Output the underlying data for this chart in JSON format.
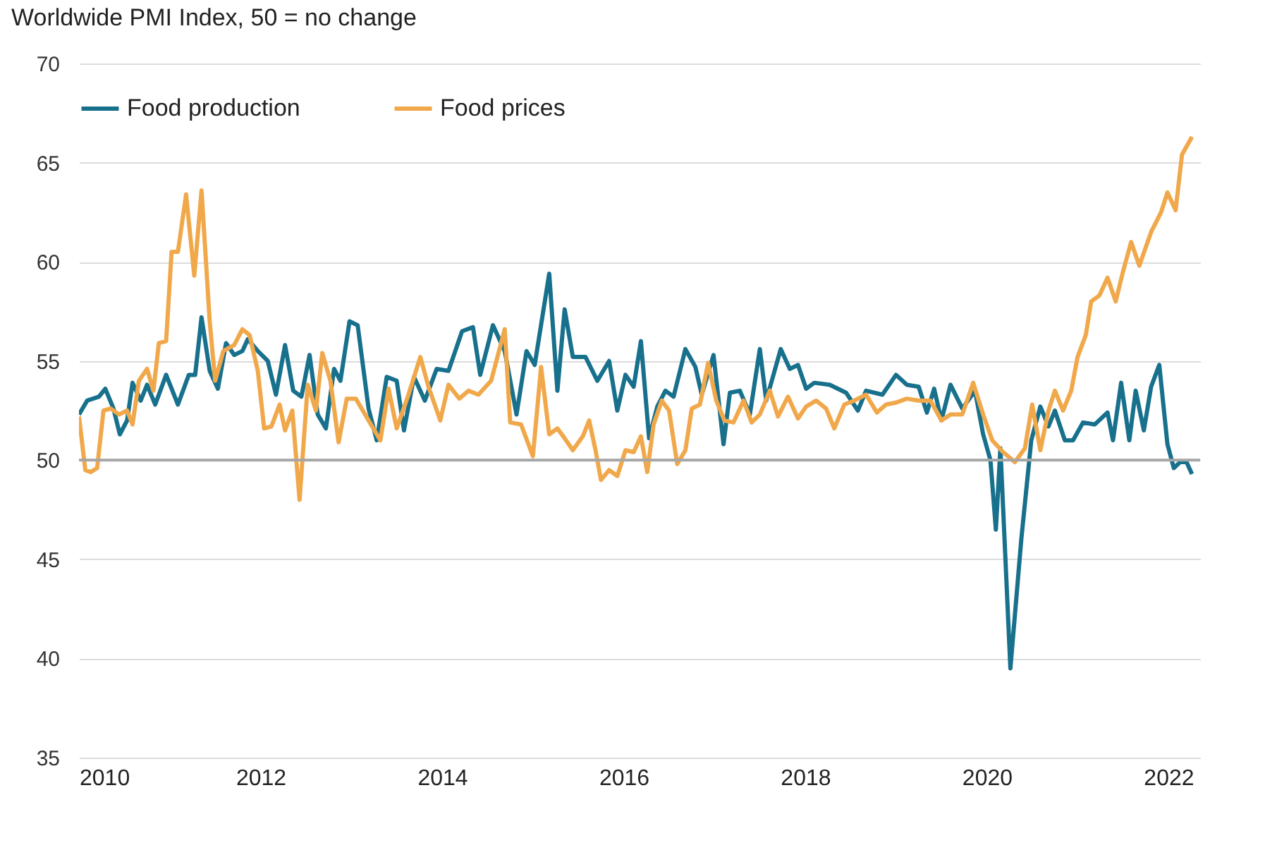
{
  "chart_data": {
    "type": "line",
    "title": "Worldwide PMI Index, 50 =  no change",
    "xlim": [
      2010,
      2022.35
    ],
    "xticks": [
      2010,
      2012,
      2014,
      2016,
      2018,
      2020,
      2022
    ],
    "ylim": [
      35,
      70
    ],
    "yticks": [
      35,
      40,
      45,
      50,
      55,
      60,
      65,
      70
    ],
    "grid": "y",
    "legend": "top",
    "ref_lines": [
      {
        "axis": "y",
        "value": 50,
        "color": "#a6a6a6"
      }
    ],
    "series": [
      {
        "name": "Food production",
        "color": "#17708c",
        "x": [
          2010.0,
          2010.09,
          2010.22,
          2010.29,
          2010.38,
          2010.45,
          2010.53,
          2010.59,
          2010.68,
          2010.75,
          2010.84,
          2010.96,
          2011.09,
          2011.21,
          2011.28,
          2011.35,
          2011.44,
          2011.53,
          2011.62,
          2011.71,
          2011.8,
          2011.86,
          2011.97,
          2012.08,
          2012.17,
          2012.27,
          2012.36,
          2012.45,
          2012.54,
          2012.63,
          2012.72,
          2012.81,
          2012.88,
          2012.98,
          2013.07,
          2013.19,
          2013.28,
          2013.39,
          2013.5,
          2013.58,
          2013.69,
          2013.81,
          2013.94,
          2014.07,
          2014.22,
          2014.34,
          2014.42,
          2014.56,
          2014.69,
          2014.82,
          2014.93,
          2015.02,
          2015.18,
          2015.27,
          2015.35,
          2015.44,
          2015.58,
          2015.71,
          2015.84,
          2015.93,
          2016.02,
          2016.11,
          2016.19,
          2016.28,
          2016.37,
          2016.46,
          2016.55,
          2016.68,
          2016.79,
          2016.86,
          2016.99,
          2017.1,
          2017.17,
          2017.28,
          2017.39,
          2017.5,
          2017.57,
          2017.73,
          2017.83,
          2017.92,
          2018.01,
          2018.1,
          2018.27,
          2018.45,
          2018.58,
          2018.67,
          2018.85,
          2019.0,
          2019.12,
          2019.25,
          2019.34,
          2019.42,
          2019.5,
          2019.6,
          2019.73,
          2019.87,
          2019.96,
          2020.04,
          2020.1,
          2020.15,
          2020.26,
          2020.38,
          2020.49,
          2020.59,
          2020.68,
          2020.75,
          2020.86,
          2020.95,
          2021.06,
          2021.19,
          2021.33,
          2021.39,
          2021.48,
          2021.57,
          2021.64,
          2021.73,
          2021.81,
          2021.9,
          2021.99,
          2022.06,
          2022.13,
          2022.2,
          2022.26
        ],
        "values": [
          52.3,
          53.0,
          53.2,
          53.6,
          52.6,
          51.3,
          52.0,
          53.9,
          53.0,
          53.8,
          52.8,
          54.3,
          52.8,
          54.3,
          54.3,
          57.2,
          54.5,
          53.6,
          55.9,
          55.3,
          55.5,
          56.1,
          55.5,
          55.0,
          53.3,
          55.8,
          53.5,
          53.2,
          55.3,
          52.3,
          51.6,
          54.6,
          54.0,
          57.0,
          56.8,
          52.6,
          51.0,
          54.2,
          54.0,
          51.5,
          54.2,
          53.0,
          54.6,
          54.5,
          56.5,
          56.7,
          54.3,
          56.8,
          55.5,
          52.3,
          55.5,
          54.8,
          59.4,
          53.5,
          57.6,
          55.2,
          55.2,
          54.0,
          55.0,
          52.5,
          54.3,
          53.7,
          56.0,
          51.1,
          52.7,
          53.5,
          53.2,
          55.6,
          54.7,
          53.3,
          55.3,
          50.8,
          53.4,
          53.5,
          52.3,
          55.6,
          53.0,
          55.6,
          54.6,
          54.8,
          53.6,
          53.9,
          53.8,
          53.4,
          52.5,
          53.5,
          53.3,
          54.3,
          53.8,
          53.7,
          52.4,
          53.6,
          52.0,
          53.8,
          52.6,
          53.5,
          51.3,
          50.0,
          46.5,
          50.6,
          39.5,
          46.0,
          51.0,
          52.7,
          51.7,
          52.5,
          51.0,
          51.0,
          51.9,
          51.8,
          52.4,
          51.0,
          53.9,
          51.0,
          53.5,
          51.5,
          53.7,
          54.8,
          50.8,
          49.6,
          49.9,
          49.9,
          49.3
        ]
      },
      {
        "name": "Food prices",
        "color": "#f0a84b",
        "x": [
          2010.0,
          2010.07,
          2010.13,
          2010.2,
          2010.27,
          2010.35,
          2010.44,
          2010.53,
          2010.59,
          2010.66,
          2010.75,
          2010.82,
          2010.88,
          2010.96,
          2011.02,
          2011.09,
          2011.18,
          2011.27,
          2011.35,
          2011.44,
          2011.5,
          2011.59,
          2011.71,
          2011.8,
          2011.88,
          2011.97,
          2012.04,
          2012.12,
          2012.21,
          2012.27,
          2012.35,
          2012.43,
          2012.52,
          2012.61,
          2012.68,
          2012.77,
          2012.86,
          2012.95,
          2013.05,
          2013.19,
          2013.32,
          2013.41,
          2013.5,
          2013.63,
          2013.76,
          2013.85,
          2013.98,
          2014.07,
          2014.19,
          2014.29,
          2014.4,
          2014.54,
          2014.69,
          2014.75,
          2014.87,
          2015.0,
          2015.09,
          2015.18,
          2015.27,
          2015.35,
          2015.44,
          2015.55,
          2015.62,
          2015.69,
          2015.75,
          2015.84,
          2015.93,
          2016.02,
          2016.11,
          2016.19,
          2016.26,
          2016.33,
          2016.42,
          2016.5,
          2016.59,
          2016.68,
          2016.75,
          2016.84,
          2016.93,
          2017.02,
          2017.11,
          2017.21,
          2017.32,
          2017.41,
          2017.5,
          2017.61,
          2017.7,
          2017.81,
          2017.92,
          2018.01,
          2018.12,
          2018.23,
          2018.32,
          2018.43,
          2018.54,
          2018.67,
          2018.79,
          2018.89,
          2019.0,
          2019.12,
          2019.25,
          2019.38,
          2019.5,
          2019.6,
          2019.73,
          2019.85,
          2019.96,
          2020.06,
          2020.18,
          2020.31,
          2020.42,
          2020.5,
          2020.59,
          2020.68,
          2020.75,
          2020.84,
          2020.93,
          2021.0,
          2021.09,
          2021.15,
          2021.24,
          2021.33,
          2021.42,
          2021.5,
          2021.59,
          2021.68,
          2021.81,
          2021.92,
          2021.99,
          2022.08,
          2022.15,
          2022.26
        ],
        "values": [
          52.2,
          49.5,
          49.4,
          49.6,
          52.5,
          52.6,
          52.3,
          52.5,
          51.8,
          54.0,
          54.6,
          53.5,
          55.9,
          56.0,
          60.5,
          60.5,
          63.4,
          59.3,
          63.6,
          57.0,
          54.0,
          55.5,
          55.8,
          56.6,
          56.3,
          54.5,
          51.6,
          51.7,
          52.8,
          51.5,
          52.5,
          48.0,
          53.8,
          52.5,
          55.4,
          54.0,
          50.9,
          53.1,
          53.1,
          52.0,
          51.0,
          53.6,
          51.6,
          53.3,
          55.2,
          53.7,
          52.0,
          53.8,
          53.1,
          53.5,
          53.3,
          54.0,
          56.6,
          51.9,
          51.8,
          50.2,
          54.7,
          51.3,
          51.6,
          51.1,
          50.5,
          51.2,
          52.0,
          50.5,
          49.0,
          49.5,
          49.2,
          50.5,
          50.4,
          51.2,
          49.4,
          51.8,
          53.0,
          52.5,
          49.8,
          50.5,
          52.6,
          52.8,
          54.9,
          53.0,
          52.0,
          51.9,
          53.0,
          51.9,
          52.3,
          53.5,
          52.2,
          53.2,
          52.1,
          52.7,
          53.0,
          52.6,
          51.6,
          52.8,
          53.0,
          53.3,
          52.4,
          52.8,
          52.9,
          53.1,
          53.0,
          53.0,
          52.0,
          52.3,
          52.3,
          53.9,
          52.3,
          51.0,
          50.4,
          49.9,
          50.6,
          52.8,
          50.5,
          52.5,
          53.5,
          52.5,
          53.5,
          55.2,
          56.3,
          58.0,
          58.3,
          59.2,
          58.0,
          59.5,
          61.0,
          59.8,
          61.5,
          62.5,
          63.5,
          62.6,
          65.4,
          66.3
        ]
      }
    ]
  }
}
